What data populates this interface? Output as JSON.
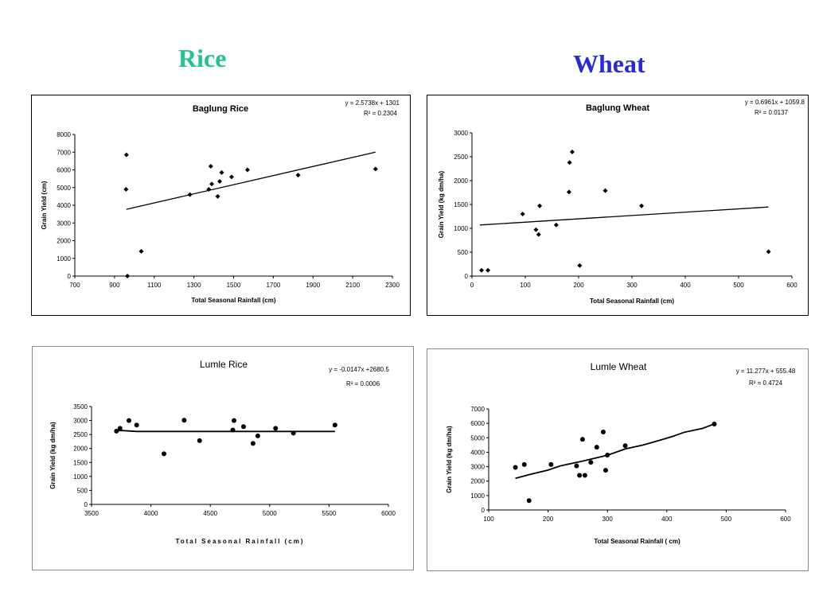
{
  "headings": {
    "rice": "Rice",
    "wheat": "Wheat",
    "rice_color": "#22c48a",
    "wheat_color": "#2b2bd6"
  },
  "chart_data": [
    {
      "type": "scatter",
      "title": "Baglung Rice",
      "xlabel": "Total Seasonal Rainfall (cm)",
      "ylabel": "Grain Yield (cm)",
      "xlim": [
        700,
        2300
      ],
      "ylim": [
        0,
        8000
      ],
      "xticks": [
        700,
        900,
        1100,
        1300,
        1500,
        1700,
        1900,
        2100,
        2300
      ],
      "yticks": [
        0,
        1000,
        2000,
        3000,
        4000,
        5000,
        6000,
        7000,
        8000
      ],
      "equation": "y = 2.5738x + 1301",
      "r2": "R² = 0.2304",
      "grid": false,
      "points": [
        {
          "x": 960,
          "y": 6850
        },
        {
          "x": 958,
          "y": 4900
        },
        {
          "x": 965,
          "y": 0
        },
        {
          "x": 1035,
          "y": 1400
        },
        {
          "x": 1280,
          "y": 4600
        },
        {
          "x": 1375,
          "y": 4900
        },
        {
          "x": 1385,
          "y": 6200
        },
        {
          "x": 1390,
          "y": 5200
        },
        {
          "x": 1420,
          "y": 4500
        },
        {
          "x": 1430,
          "y": 5350
        },
        {
          "x": 1440,
          "y": 5850
        },
        {
          "x": 1490,
          "y": 5600
        },
        {
          "x": 1570,
          "y": 6000
        },
        {
          "x": 1825,
          "y": 5700
        },
        {
          "x": 2215,
          "y": 6050
        }
      ],
      "trend": [
        [
          960,
          3772
        ],
        [
          2215,
          7002
        ]
      ]
    },
    {
      "type": "scatter",
      "title": "Baglung Wheat",
      "xlabel": "Total Seasonal Rainfall (cm)",
      "ylabel": "Grain Yield (kg dm/ha)",
      "xlim": [
        0,
        600
      ],
      "ylim": [
        0,
        3000
      ],
      "xticks": [
        0,
        100,
        200,
        300,
        400,
        500,
        600
      ],
      "yticks": [
        0,
        500,
        1000,
        1500,
        2000,
        2500,
        3000
      ],
      "equation": "y = 0.6961x + 1059.8",
      "r2": "R² = 0.0137",
      "grid": false,
      "points": [
        {
          "x": 18,
          "y": 120
        },
        {
          "x": 30,
          "y": 120
        },
        {
          "x": 95,
          "y": 1300
        },
        {
          "x": 120,
          "y": 970
        },
        {
          "x": 125,
          "y": 870
        },
        {
          "x": 127,
          "y": 1470
        },
        {
          "x": 158,
          "y": 1070
        },
        {
          "x": 182,
          "y": 1760
        },
        {
          "x": 183,
          "y": 2380
        },
        {
          "x": 188,
          "y": 2600
        },
        {
          "x": 202,
          "y": 220
        },
        {
          "x": 250,
          "y": 1790
        },
        {
          "x": 318,
          "y": 1470
        },
        {
          "x": 556,
          "y": 510
        }
      ],
      "trend": [
        [
          15,
          1070
        ],
        [
          556,
          1447
        ]
      ]
    },
    {
      "type": "scatter",
      "title": "Lumle Rice",
      "xlabel": "Total Seasonal Rainfall (cm)",
      "ylabel": "Grain Yield (kg dm/ha)",
      "xlim": [
        3500,
        6000
      ],
      "ylim": [
        0,
        3500
      ],
      "xticks": [
        3500,
        4000,
        4500,
        5000,
        5500,
        6000
      ],
      "yticks": [
        0,
        500,
        1000,
        1500,
        2000,
        2500,
        3000,
        3500
      ],
      "equation": "y = -0.0147x +2680.5",
      "r2": "R² = 0.0006",
      "grid": false,
      "points": [
        {
          "x": 3710,
          "y": 2620
        },
        {
          "x": 3740,
          "y": 2720
        },
        {
          "x": 3815,
          "y": 3000
        },
        {
          "x": 3880,
          "y": 2840
        },
        {
          "x": 4110,
          "y": 1810
        },
        {
          "x": 4280,
          "y": 3010
        },
        {
          "x": 4410,
          "y": 2280
        },
        {
          "x": 4690,
          "y": 2660
        },
        {
          "x": 4700,
          "y": 3000
        },
        {
          "x": 4780,
          "y": 2780
        },
        {
          "x": 4860,
          "y": 2180
        },
        {
          "x": 4900,
          "y": 2450
        },
        {
          "x": 5050,
          "y": 2720
        },
        {
          "x": 5200,
          "y": 2550
        },
        {
          "x": 5550,
          "y": 2840
        }
      ],
      "trend": [
        [
          3700,
          2640
        ],
        [
          3760,
          2640
        ],
        [
          3880,
          2610
        ],
        [
          5550,
          2610
        ]
      ]
    },
    {
      "type": "scatter",
      "title": "Lumle Wheat",
      "xlabel": "Total Seasonal Rainfall ( cm)",
      "ylabel": "Grain Yield (kg dm/ha)",
      "xlim": [
        100,
        600
      ],
      "ylim": [
        0,
        7000
      ],
      "xticks": [
        100,
        200,
        300,
        400,
        500,
        600
      ],
      "yticks": [
        0,
        1000,
        2000,
        3000,
        4000,
        5000,
        6000,
        7000
      ],
      "equation": "y = 11.277x + 555.48",
      "r2": "R² = 0.4724",
      "grid": false,
      "points": [
        {
          "x": 145,
          "y": 2950
        },
        {
          "x": 160,
          "y": 3150
        },
        {
          "x": 168,
          "y": 650
        },
        {
          "x": 205,
          "y": 3150
        },
        {
          "x": 248,
          "y": 3050
        },
        {
          "x": 253,
          "y": 2400
        },
        {
          "x": 258,
          "y": 4900
        },
        {
          "x": 262,
          "y": 2400
        },
        {
          "x": 272,
          "y": 3300
        },
        {
          "x": 282,
          "y": 4350
        },
        {
          "x": 293,
          "y": 5400
        },
        {
          "x": 297,
          "y": 2750
        },
        {
          "x": 300,
          "y": 3800
        },
        {
          "x": 330,
          "y": 4450
        },
        {
          "x": 480,
          "y": 5950
        }
      ],
      "trend": [
        [
          145,
          2190
        ],
        [
          170,
          2470
        ],
        [
          200,
          2760
        ],
        [
          220,
          3040
        ],
        [
          260,
          3400
        ],
        [
          300,
          3790
        ],
        [
          330,
          4230
        ],
        [
          360,
          4500
        ],
        [
          390,
          4850
        ],
        [
          410,
          5100
        ],
        [
          430,
          5390
        ],
        [
          460,
          5650
        ],
        [
          480,
          5960
        ]
      ]
    }
  ]
}
